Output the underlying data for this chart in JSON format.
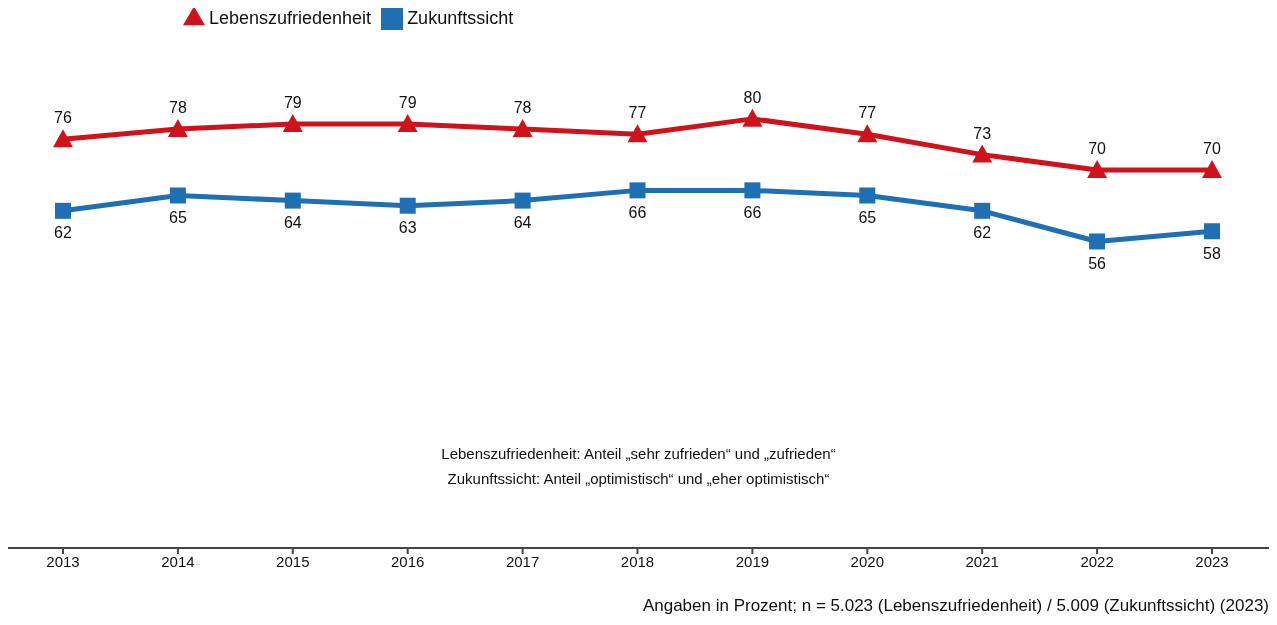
{
  "chart_data": {
    "type": "line",
    "categories": [
      "2013",
      "2014",
      "2015",
      "2016",
      "2017",
      "2018",
      "2019",
      "2020",
      "2021",
      "2022",
      "2023"
    ],
    "series": [
      {
        "name": "Lebenszufriedenheit",
        "color": "#d0121b",
        "marker": "triangle",
        "values": [
          76,
          78,
          79,
          79,
          78,
          77,
          80,
          77,
          73,
          70,
          70
        ]
      },
      {
        "name": "Zukunftssicht",
        "color": "#1f6fb5",
        "marker": "square",
        "values": [
          62,
          65,
          64,
          63,
          64,
          66,
          66,
          65,
          62,
          56,
          58
        ]
      }
    ],
    "data_labels": true,
    "legend": "top left",
    "grid": false,
    "annotations": [
      "Lebenszufriedenheit: Anteil „sehr zufrieden“ und „zufrieden“",
      "Zukunftssicht: Anteil „optimistisch“ und „eher optimistisch“",
      "Angaben in Prozent; n = 5.023 (Lebenszufriedenheit) / 5.009 (Zukunftssicht) (2023)"
    ]
  }
}
